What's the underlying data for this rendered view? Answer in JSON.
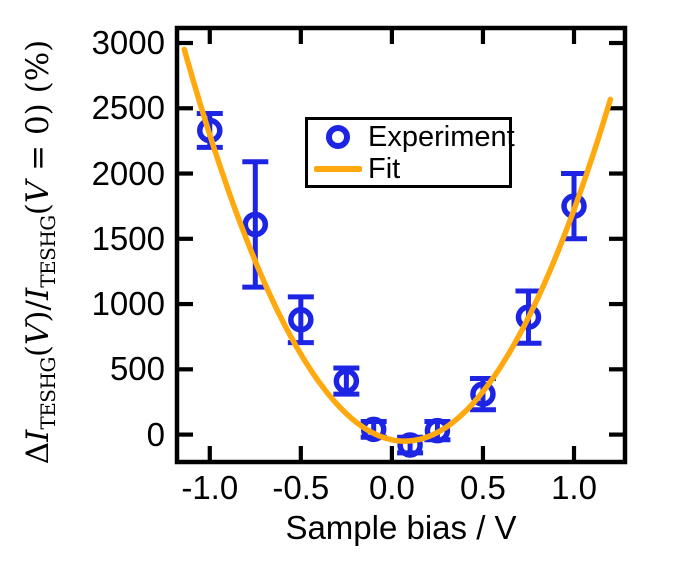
{
  "chart_data": {
    "type": "scatter",
    "title": "",
    "xlabel": "Sample bias / V",
    "ylabel": "ΔI_TESHG(V)/I_TESHG(V = 0) (%)",
    "ylabel_parts": {
      "delta": "Δ",
      "i1": "I",
      "sub1": "TESHG",
      "b1": "(",
      "v1": "V",
      "b2": ")/",
      "i2": "I",
      "sub2": "TESHG",
      "b3": "(",
      "v2": "V",
      "b4": " = 0) (%)"
    },
    "xlim": [
      -1.18,
      1.28
    ],
    "ylim": [
      -210,
      3115
    ],
    "x_ticks": [
      -1.0,
      -0.5,
      0.0,
      0.5,
      1.0
    ],
    "x_tick_labels": [
      "-1.0",
      "-0.5",
      "0.0",
      "0.5",
      "1.0"
    ],
    "y_ticks": [
      0,
      500,
      1000,
      1500,
      2000,
      2500,
      3000
    ],
    "y_tick_labels": [
      "0",
      "500",
      "1000",
      "1500",
      "2000",
      "2500",
      "3000"
    ],
    "grid": false,
    "legend_position": "upper center-right inside",
    "colors": {
      "experiment": "#1d24e4",
      "fit": "#ffa90e",
      "axes": "#000000"
    },
    "series": [
      {
        "name": "Experiment",
        "type": "scatter-errorbar",
        "marker": "open-circle",
        "color": "#1d24e4",
        "x": [
          -1.0,
          -0.75,
          -0.5,
          -0.25,
          -0.1,
          0.1,
          0.25,
          0.5,
          0.75,
          1.0
        ],
        "y": [
          2330,
          1610,
          880,
          410,
          40,
          -80,
          30,
          310,
          900,
          1750
        ],
        "yerr": [
          130,
          480,
          175,
          100,
          60,
          60,
          70,
          120,
          200,
          250
        ]
      },
      {
        "name": "Fit",
        "type": "line",
        "color": "#ffa90e",
        "fit": {
          "model": "quadratic",
          "a": 2050,
          "v0": 0.07,
          "c": -50,
          "domain": [
            -1.14,
            1.2
          ]
        }
      }
    ]
  }
}
